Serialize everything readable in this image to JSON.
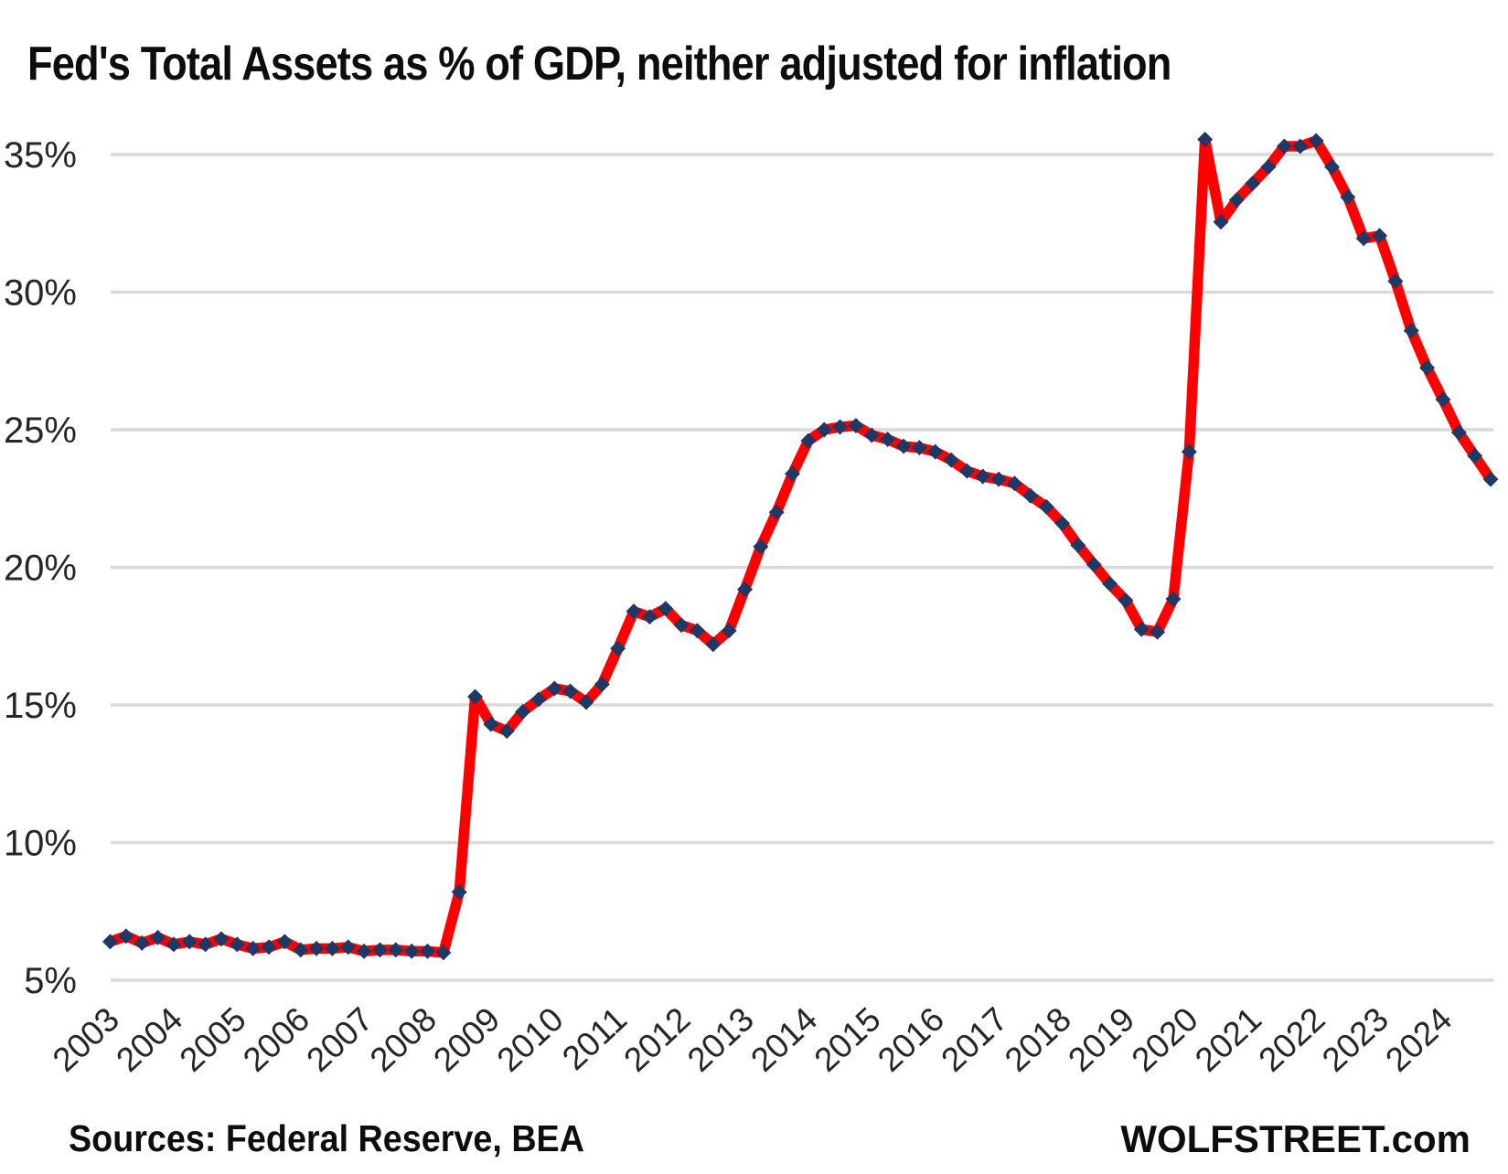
{
  "footer": {
    "sources": "Sources: Federal Reserve, BEA",
    "watermark": "WOLFSTREET.com"
  },
  "chart_data": {
    "type": "line",
    "title": "Fed's Total Assets as % of GDP, neither adjusted for inflation",
    "xlabel": "",
    "ylabel": "",
    "frequency": "quarterly",
    "x_start": "2003 Q1",
    "x_end": "2024 Q4",
    "ylim": [
      5,
      35
    ],
    "grid": "horizontal",
    "legend_position": "none",
    "y_ticks": [
      {
        "value": 35,
        "label": "35%"
      },
      {
        "value": 30,
        "label": "30%"
      },
      {
        "value": 25,
        "label": "25%"
      },
      {
        "value": 20,
        "label": "20%"
      },
      {
        "value": 15,
        "label": "15%"
      },
      {
        "value": 10,
        "label": "10%"
      },
      {
        "value": 5,
        "label": "5%"
      }
    ],
    "x_tick_labels": [
      "2003",
      "2004",
      "2005",
      "2006",
      "2007",
      "2008",
      "2009",
      "2010",
      "2011",
      "2012",
      "2013",
      "2014",
      "2015",
      "2016",
      "2017",
      "2018",
      "2019",
      "2020",
      "2021",
      "2022",
      "2023",
      "2024"
    ],
    "colors": {
      "line": "#FF0000",
      "marker": "#1F3864",
      "gridline": "#D9D9D9",
      "axis_text": "#262626"
    },
    "series": [
      {
        "name": "Fed total assets as % of GDP",
        "marker_shape": "diamond",
        "values": [
          6.4,
          6.6,
          6.35,
          6.55,
          6.3,
          6.4,
          6.3,
          6.5,
          6.3,
          6.15,
          6.2,
          6.4,
          6.1,
          6.15,
          6.15,
          6.2,
          6.05,
          6.1,
          6.1,
          6.05,
          6.05,
          6.0,
          8.2,
          15.3,
          14.3,
          14.05,
          14.75,
          15.2,
          15.6,
          15.5,
          15.1,
          15.75,
          17.05,
          18.4,
          18.2,
          18.5,
          17.9,
          17.7,
          17.2,
          17.7,
          19.2,
          20.75,
          22.0,
          23.4,
          24.6,
          25.0,
          25.1,
          25.15,
          24.8,
          24.65,
          24.4,
          24.35,
          24.2,
          23.9,
          23.5,
          23.3,
          23.2,
          23.05,
          22.6,
          22.2,
          21.6,
          20.8,
          20.1,
          19.4,
          18.8,
          17.75,
          17.65,
          18.85,
          24.2,
          35.55,
          32.55,
          33.35,
          33.95,
          34.55,
          35.3,
          35.3,
          35.5,
          34.55,
          33.45,
          31.95,
          32.05,
          30.4,
          28.6,
          27.25,
          26.1,
          24.9,
          24.05,
          23.2
        ]
      }
    ]
  }
}
